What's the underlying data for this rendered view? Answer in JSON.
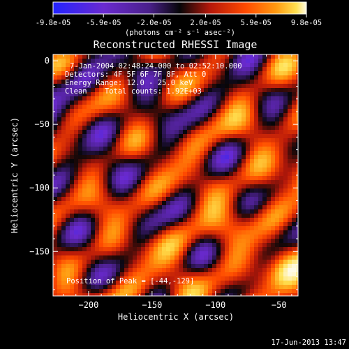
{
  "colorbar": {
    "tick_labels": [
      "-9.8e-05",
      "-5.9e-05",
      "-2.0e-05",
      "2.0e-05",
      "5.9e-05",
      "9.8e-05"
    ],
    "tick_values": [
      -9.8e-05,
      -5.9e-05,
      -2e-05,
      2e-05,
      5.9e-05,
      9.8e-05
    ],
    "range": [
      -9.8e-05,
      9.8e-05
    ],
    "unit_label": "(photons cm⁻² s⁻¹ asec⁻²)",
    "colormap": "blue-purple-black-red-orange-yellow-white"
  },
  "chart_data": {
    "type": "heatmap",
    "title": "Reconstructed RHESSI Image",
    "xlabel": "Heliocentric X (arcsec)",
    "ylabel": "Heliocentric Y (arcsec)",
    "xlim": [
      -228,
      -35
    ],
    "ylim": [
      -185,
      5
    ],
    "x_ticks": [
      -200,
      -150,
      -100,
      -50
    ],
    "x_tick_labels": [
      "−200",
      "−150",
      "−100",
      "−50"
    ],
    "y_ticks": [
      0,
      -50,
      -100,
      -150
    ],
    "y_tick_labels": [
      "0",
      "−50",
      "−100",
      "−150"
    ],
    "annotations": [
      "7-Jan-2004 02:48:24.000 to 02:52:10.000",
      "Detectors: 4F 5F 6F 7F 8F, Att 0",
      "Energy Range: 12.0 - 25.0 keV",
      "Clean    Total counts: 1.92E+03"
    ],
    "peak_label": "Position of Peak = [-44,-129]",
    "peak_position": [
      -44,
      -129
    ],
    "grid": false
  },
  "footer": {
    "timestamp": "17-Jun-2013 13:47"
  },
  "colors": {
    "background": "#000000",
    "text": "#ffffff",
    "colormap_stops": [
      "#2323ff",
      "#6a2ad0",
      "#4a208a",
      "#060608",
      "#b5180a",
      "#ff4a00",
      "#ff9a10",
      "#ffe050",
      "#fffbe5"
    ]
  }
}
